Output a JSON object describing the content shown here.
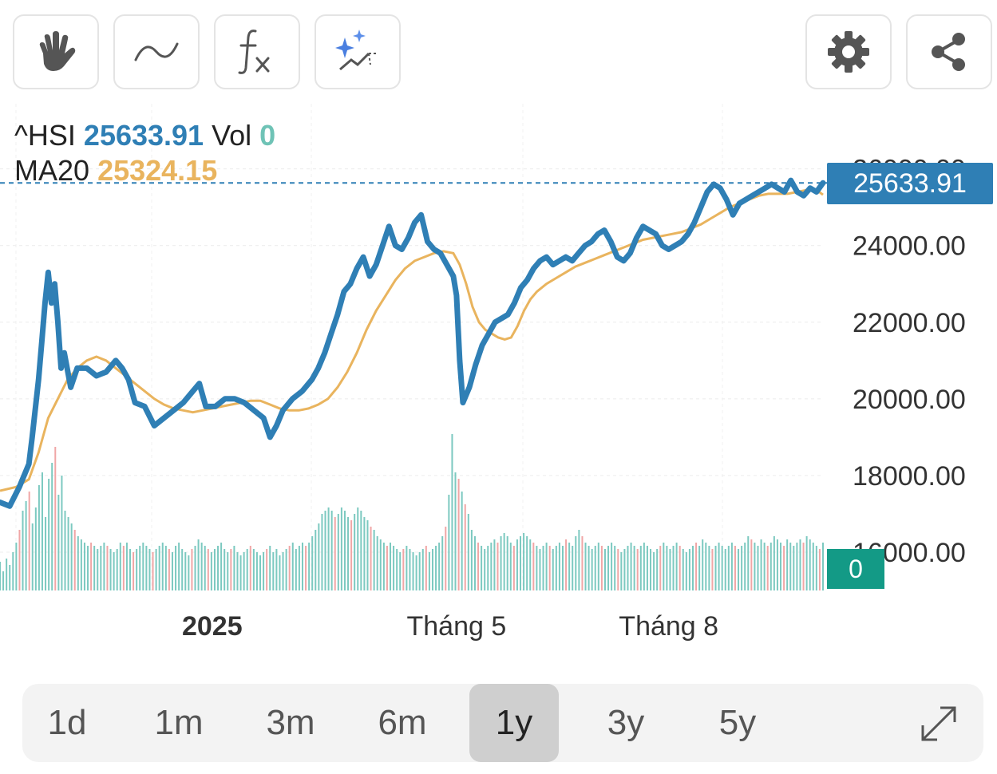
{
  "toolbar": {
    "buttons": [
      {
        "name": "hand-pan-icon"
      },
      {
        "name": "line-wave-icon"
      },
      {
        "name": "function-fx-icon"
      },
      {
        "name": "ai-sparkle-trend-icon"
      },
      {
        "name": "gear-icon"
      },
      {
        "name": "share-icon"
      }
    ]
  },
  "legend": {
    "symbol": "^HSI",
    "price": "25633.91",
    "vol_label": "Vol",
    "vol_value": "0",
    "ma_label": "MA20",
    "ma_value": "25324.15"
  },
  "price_tag": "25633.91",
  "volume_tag": "0",
  "ranges": [
    {
      "label": "1d",
      "active": false
    },
    {
      "label": "1m",
      "active": false
    },
    {
      "label": "3m",
      "active": false
    },
    {
      "label": "6m",
      "active": false
    },
    {
      "label": "1y",
      "active": true
    },
    {
      "label": "3y",
      "active": false
    },
    {
      "label": "5y",
      "active": false
    }
  ],
  "colors": {
    "price_line": "#2f7fb5",
    "ma_line": "#e9b45e",
    "vol_up": "#7cc9c0",
    "vol_down": "#f0a6a6",
    "volume_tag_bg": "#139a86"
  },
  "chart_data": {
    "type": "line",
    "x_ticks": [
      {
        "label": "2025",
        "x": 66,
        "bold": true
      },
      {
        "label": "Tháng 5",
        "x": 142,
        "bold": false
      },
      {
        "label": "Tháng 8",
        "x": 208,
        "bold": false
      }
    ],
    "y_ticks": [
      "26000.00",
      "24000.00",
      "22000.00",
      "20000.00",
      "18000.00",
      "16000.00"
    ],
    "y_tick_values": [
      26000,
      24000,
      22000,
      20000,
      18000,
      16000
    ],
    "ylim": [
      15000,
      27700
    ],
    "last_index": 256,
    "series": [
      {
        "name": "^HSI",
        "points": [
          [
            0,
            17300
          ],
          [
            3,
            17200
          ],
          [
            6,
            17700
          ],
          [
            9,
            18300
          ],
          [
            10,
            19000
          ],
          [
            12,
            20500
          ],
          [
            13,
            21500
          ],
          [
            14,
            22500
          ],
          [
            15,
            23300
          ],
          [
            16,
            22500
          ],
          [
            17,
            23000
          ],
          [
            18,
            22000
          ],
          [
            19,
            20800
          ],
          [
            20,
            21200
          ],
          [
            22,
            20300
          ],
          [
            24,
            20800
          ],
          [
            27,
            20800
          ],
          [
            30,
            20600
          ],
          [
            33,
            20700
          ],
          [
            36,
            21000
          ],
          [
            38,
            20800
          ],
          [
            40,
            20500
          ],
          [
            42,
            19900
          ],
          [
            45,
            19800
          ],
          [
            48,
            19300
          ],
          [
            51,
            19500
          ],
          [
            54,
            19700
          ],
          [
            57,
            19900
          ],
          [
            60,
            20200
          ],
          [
            62,
            20400
          ],
          [
            64,
            19800
          ],
          [
            67,
            19800
          ],
          [
            70,
            20000
          ],
          [
            73,
            20000
          ],
          [
            76,
            19900
          ],
          [
            79,
            19700
          ],
          [
            82,
            19500
          ],
          [
            84,
            19000
          ],
          [
            86,
            19300
          ],
          [
            88,
            19700
          ],
          [
            91,
            20000
          ],
          [
            94,
            20200
          ],
          [
            97,
            20500
          ],
          [
            99,
            20800
          ],
          [
            101,
            21200
          ],
          [
            103,
            21700
          ],
          [
            105,
            22200
          ],
          [
            107,
            22800
          ],
          [
            109,
            23000
          ],
          [
            111,
            23400
          ],
          [
            113,
            23700
          ],
          [
            115,
            23200
          ],
          [
            117,
            23500
          ],
          [
            119,
            24000
          ],
          [
            121,
            24500
          ],
          [
            123,
            24000
          ],
          [
            125,
            23900
          ],
          [
            127,
            24200
          ],
          [
            129,
            24600
          ],
          [
            131,
            24800
          ],
          [
            133,
            24100
          ],
          [
            135,
            23900
          ],
          [
            137,
            23800
          ],
          [
            139,
            23500
          ],
          [
            141,
            23200
          ],
          [
            142,
            22700
          ],
          [
            143,
            21000
          ],
          [
            144,
            19900
          ],
          [
            146,
            20300
          ],
          [
            148,
            20900
          ],
          [
            150,
            21400
          ],
          [
            152,
            21700
          ],
          [
            154,
            22000
          ],
          [
            156,
            22100
          ],
          [
            158,
            22200
          ],
          [
            160,
            22500
          ],
          [
            162,
            22900
          ],
          [
            164,
            23100
          ],
          [
            166,
            23400
          ],
          [
            168,
            23600
          ],
          [
            170,
            23700
          ],
          [
            172,
            23500
          ],
          [
            174,
            23600
          ],
          [
            176,
            23700
          ],
          [
            178,
            23600
          ],
          [
            180,
            23800
          ],
          [
            182,
            24000
          ],
          [
            184,
            24100
          ],
          [
            186,
            24300
          ],
          [
            188,
            24400
          ],
          [
            190,
            24100
          ],
          [
            192,
            23700
          ],
          [
            194,
            23600
          ],
          [
            196,
            23800
          ],
          [
            198,
            24200
          ],
          [
            200,
            24500
          ],
          [
            202,
            24400
          ],
          [
            204,
            24300
          ],
          [
            206,
            24000
          ],
          [
            208,
            23900
          ],
          [
            210,
            24000
          ],
          [
            212,
            24100
          ],
          [
            214,
            24300
          ],
          [
            216,
            24600
          ],
          [
            218,
            25000
          ],
          [
            220,
            25400
          ],
          [
            222,
            25600
          ],
          [
            224,
            25500
          ],
          [
            226,
            25200
          ],
          [
            228,
            24800
          ],
          [
            230,
            25100
          ],
          [
            232,
            25200
          ],
          [
            234,
            25300
          ],
          [
            236,
            25400
          ],
          [
            238,
            25500
          ],
          [
            240,
            25600
          ],
          [
            242,
            25500
          ],
          [
            244,
            25400
          ],
          [
            246,
            25700
          ],
          [
            248,
            25400
          ],
          [
            250,
            25300
          ],
          [
            252,
            25500
          ],
          [
            254,
            25400
          ],
          [
            256,
            25634
          ]
        ]
      },
      {
        "name": "MA20",
        "points": [
          [
            0,
            17600
          ],
          [
            5,
            17700
          ],
          [
            9,
            17900
          ],
          [
            12,
            18600
          ],
          [
            15,
            19500
          ],
          [
            18,
            20000
          ],
          [
            21,
            20500
          ],
          [
            24,
            20800
          ],
          [
            27,
            21000
          ],
          [
            30,
            21100
          ],
          [
            33,
            21000
          ],
          [
            36,
            20800
          ],
          [
            39,
            20600
          ],
          [
            42,
            20400
          ],
          [
            45,
            20200
          ],
          [
            48,
            20000
          ],
          [
            51,
            19850
          ],
          [
            54,
            19750
          ],
          [
            57,
            19700
          ],
          [
            60,
            19650
          ],
          [
            63,
            19700
          ],
          [
            66,
            19750
          ],
          [
            69,
            19800
          ],
          [
            72,
            19850
          ],
          [
            75,
            19900
          ],
          [
            78,
            19950
          ],
          [
            81,
            19950
          ],
          [
            84,
            19850
          ],
          [
            87,
            19750
          ],
          [
            90,
            19700
          ],
          [
            93,
            19700
          ],
          [
            96,
            19750
          ],
          [
            99,
            19850
          ],
          [
            102,
            20000
          ],
          [
            105,
            20300
          ],
          [
            108,
            20700
          ],
          [
            111,
            21200
          ],
          [
            114,
            21800
          ],
          [
            117,
            22300
          ],
          [
            120,
            22700
          ],
          [
            123,
            23100
          ],
          [
            126,
            23400
          ],
          [
            129,
            23600
          ],
          [
            132,
            23700
          ],
          [
            135,
            23800
          ],
          [
            138,
            23850
          ],
          [
            141,
            23800
          ],
          [
            143,
            23500
          ],
          [
            145,
            23000
          ],
          [
            147,
            22400
          ],
          [
            149,
            22000
          ],
          [
            151,
            21800
          ],
          [
            153,
            21700
          ],
          [
            155,
            21600
          ],
          [
            157,
            21550
          ],
          [
            159,
            21600
          ],
          [
            161,
            21900
          ],
          [
            163,
            22300
          ],
          [
            165,
            22600
          ],
          [
            167,
            22800
          ],
          [
            170,
            23000
          ],
          [
            173,
            23150
          ],
          [
            176,
            23300
          ],
          [
            179,
            23450
          ],
          [
            182,
            23550
          ],
          [
            185,
            23650
          ],
          [
            188,
            23750
          ],
          [
            191,
            23850
          ],
          [
            194,
            23950
          ],
          [
            197,
            24050
          ],
          [
            200,
            24150
          ],
          [
            203,
            24200
          ],
          [
            206,
            24250
          ],
          [
            209,
            24300
          ],
          [
            212,
            24350
          ],
          [
            215,
            24450
          ],
          [
            218,
            24550
          ],
          [
            221,
            24700
          ],
          [
            224,
            24850
          ],
          [
            227,
            25000
          ],
          [
            230,
            25100
          ],
          [
            233,
            25200
          ],
          [
            236,
            25300
          ],
          [
            239,
            25350
          ],
          [
            242,
            25350
          ],
          [
            245,
            25350
          ],
          [
            248,
            25400
          ],
          [
            251,
            25450
          ],
          [
            254,
            25450
          ],
          [
            256,
            25324
          ]
        ]
      }
    ],
    "volume": {
      "max": 100,
      "values": [
        18,
        12,
        20,
        16,
        24,
        30,
        38,
        50,
        56,
        62,
        42,
        52,
        66,
        74,
        46,
        70,
        80,
        90,
        60,
        72,
        50,
        46,
        42,
        38,
        34,
        32,
        30,
        28,
        30,
        28,
        26,
        28,
        30,
        28,
        26,
        24,
        26,
        30,
        28,
        30,
        26,
        24,
        26,
        28,
        30,
        28,
        26,
        24,
        26,
        28,
        30,
        28,
        26,
        24,
        28,
        30,
        26,
        24,
        22,
        26,
        28,
        32,
        30,
        28,
        26,
        24,
        26,
        28,
        30,
        26,
        24,
        26,
        28,
        24,
        22,
        24,
        26,
        28,
        26,
        24,
        22,
        24,
        26,
        28,
        24,
        26,
        22,
        24,
        26,
        28,
        30,
        26,
        28,
        30,
        28,
        30,
        34,
        38,
        42,
        48,
        50,
        52,
        50,
        46,
        48,
        52,
        50,
        46,
        44,
        48,
        52,
        50,
        46,
        44,
        40,
        38,
        34,
        32,
        30,
        28,
        30,
        28,
        26,
        24,
        26,
        28,
        26,
        24,
        22,
        24,
        26,
        28,
        24,
        26,
        28,
        30,
        34,
        40,
        60,
        98,
        74,
        70,
        62,
        54,
        48,
        38,
        34,
        30,
        28,
        26,
        28,
        30,
        32,
        30,
        34,
        36,
        34,
        30,
        28,
        32,
        34,
        36,
        34,
        32,
        30,
        28,
        26,
        28,
        30,
        28,
        26,
        28,
        30,
        28,
        32,
        30,
        28,
        34,
        38,
        34,
        30,
        28,
        26,
        28,
        30,
        28,
        26,
        28,
        30,
        28,
        26,
        24,
        26,
        28,
        30,
        28,
        26,
        28,
        30,
        28,
        26,
        24,
        26,
        28,
        30,
        28,
        26,
        28,
        30,
        28,
        26,
        24,
        26,
        28,
        30,
        28,
        32,
        30,
        28,
        26,
        28,
        30,
        28,
        26,
        28,
        30,
        28,
        26,
        28,
        30,
        34,
        32,
        30,
        28,
        32,
        30,
        28,
        30,
        34,
        32,
        30,
        28,
        32,
        30,
        28,
        30,
        32,
        30,
        34,
        32,
        30,
        28,
        26,
        30
      ],
      "down_indices": [
        6,
        9,
        17,
        23,
        28,
        33,
        38,
        41,
        47,
        52,
        59,
        64,
        71,
        77,
        82,
        89,
        94,
        103,
        108,
        114,
        119,
        124,
        131,
        137,
        141,
        143,
        147,
        153,
        158,
        164,
        169,
        174,
        179,
        185,
        190,
        196,
        203,
        209,
        214,
        219,
        226,
        231,
        236,
        241,
        247,
        252
      ]
    }
  }
}
